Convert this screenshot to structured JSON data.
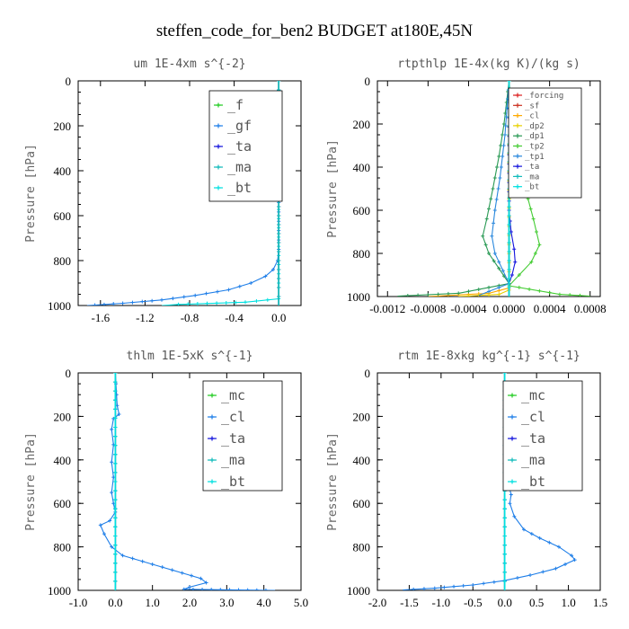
{
  "title": "steffen_code_for_ben2  BUDGET at180E,45N",
  "chart_data": [
    {
      "type": "line",
      "title": "um   1E-4xm s^{-2}",
      "ylabel": "Pressure [hPa]",
      "xlim": [
        -1.8,
        0.2
      ],
      "ylim": [
        1000,
        0
      ],
      "xticks": [
        -1.6,
        -1.2,
        -0.8,
        -0.4,
        0.0
      ],
      "xtick_labels": [
        "-1.6",
        "-1.2",
        "-0.8",
        "-0.4",
        "0.0"
      ],
      "yticks": [
        0,
        200,
        400,
        600,
        800,
        1000
      ],
      "legend": "top-right",
      "series": [
        {
          "name": "_f",
          "color": "#22cc22",
          "x": [
            0,
            0
          ],
          "y": [
            0,
            1000
          ]
        },
        {
          "name": "_gf",
          "color": "#1e7ee8",
          "x": [
            0,
            0,
            -0.01,
            -0.05,
            -0.12,
            -0.25,
            -0.45,
            -0.75,
            -1.05,
            -1.4,
            -1.65,
            -1.72
          ],
          "y": [
            0,
            750,
            800,
            840,
            870,
            900,
            930,
            955,
            975,
            990,
            998,
            1000
          ]
        },
        {
          "name": "_ta",
          "color": "#1414dd",
          "x": [
            0,
            0
          ],
          "y": [
            0,
            1000
          ]
        },
        {
          "name": "_ma",
          "color": "#11bbbb",
          "x": [
            0,
            0
          ],
          "y": [
            0,
            1000
          ]
        },
        {
          "name": "_bt",
          "color": "#00e0e0",
          "x": [
            0,
            0,
            0,
            -0.3,
            -0.9,
            -1.05
          ],
          "y": [
            0,
            900,
            970,
            985,
            995,
            1000
          ]
        }
      ]
    },
    {
      "type": "line",
      "title": "rtpthlp   1E-4x(kg K)/(kg s)",
      "ylabel": "Pressure [hPa]",
      "xlim": [
        -0.0013,
        0.0009
      ],
      "ylim": [
        1000,
        0
      ],
      "xticks": [
        -0.0012,
        -0.0008,
        -0.0004,
        0.0,
        0.0004,
        0.0008
      ],
      "xtick_labels": [
        "-0.0012",
        "-0.0008",
        "-0.0004",
        "0.0000",
        "0.0004",
        "0.0008"
      ],
      "yticks": [
        0,
        200,
        400,
        600,
        800,
        1000
      ],
      "legend": "top-right",
      "series": [
        {
          "name": "_forcing",
          "color": "#dd2222",
          "x": [
            0,
            0
          ],
          "y": [
            0,
            1000
          ]
        },
        {
          "name": "_sf",
          "color": "#cc3322",
          "x": [
            0,
            0
          ],
          "y": [
            0,
            1000
          ]
        },
        {
          "name": "_cl",
          "color": "#ffaa00",
          "x": [
            0,
            0,
            -0.0002,
            -0.0008
          ],
          "y": [
            0,
            960,
            985,
            1000
          ]
        },
        {
          "name": "_dp2",
          "color": "#e8d000",
          "x": [
            0,
            0,
            -0.0001,
            -0.0005
          ],
          "y": [
            0,
            970,
            990,
            1000
          ]
        },
        {
          "name": "_dp1",
          "color": "#2a9a55",
          "x": [
            0,
            -5e-05,
            -0.0001,
            -0.00016,
            -0.00022,
            -0.00026,
            -0.0002,
            -0.0001,
            0,
            -0.0005,
            -0.0011
          ],
          "y": [
            0,
            200,
            350,
            500,
            640,
            720,
            800,
            870,
            940,
            985,
            998
          ]
        },
        {
          "name": "_tp2",
          "color": "#44cc33",
          "x": [
            0,
            4e-05,
            0.0001,
            0.00016,
            0.00024,
            0.0003,
            0.00022,
            0.0001,
            0,
            0.0005,
            0.0008
          ],
          "y": [
            0,
            200,
            350,
            500,
            640,
            760,
            840,
            900,
            950,
            990,
            998
          ]
        },
        {
          "name": "_tp1",
          "color": "#2a88dd",
          "x": [
            0,
            -4e-05,
            -9e-05,
            -0.00014,
            -0.00017,
            -0.00014,
            -6e-05,
            0,
            -0.0003
          ],
          "y": [
            0,
            250,
            450,
            600,
            720,
            800,
            880,
            940,
            995
          ]
        },
        {
          "name": "_ta",
          "color": "#1414dd",
          "x": [
            0,
            0,
            2e-05,
            5e-05,
            6e-05,
            3e-05,
            0
          ],
          "y": [
            0,
            600,
            700,
            780,
            840,
            900,
            940
          ]
        },
        {
          "name": "_ma",
          "color": "#11bbbb",
          "x": [
            0,
            0
          ],
          "y": [
            0,
            1000
          ]
        },
        {
          "name": "_bt",
          "color": "#00e0e0",
          "x": [
            0,
            0
          ],
          "y": [
            0,
            1000
          ]
        }
      ]
    },
    {
      "type": "line",
      "title": "thlm   1E-5xK s^{-1}",
      "ylabel": "Pressure [hPa]",
      "xlim": [
        -1.0,
        5.0
      ],
      "ylim": [
        1000,
        0
      ],
      "xticks": [
        -1,
        0,
        1,
        2,
        3,
        4,
        5
      ],
      "xtick_labels": [
        "-1.0",
        "0.0",
        "1.0",
        "2.0",
        "3.0",
        "4.0",
        "5.0"
      ],
      "yticks": [
        0,
        200,
        400,
        600,
        800,
        1000
      ],
      "legend": "top-right",
      "series": [
        {
          "name": "_mc",
          "color": "#22cc22",
          "x": [
            0,
            0
          ],
          "y": [
            0,
            1000
          ]
        },
        {
          "name": "_cl",
          "color": "#1e7ee8",
          "x": [
            0,
            0.05,
            0.1,
            -0.05,
            -0.1,
            -0.05,
            -0.1,
            -0.05,
            -0.1,
            -0.05,
            0,
            -0.15,
            -0.4,
            -0.3,
            -0.1,
            0.2,
            1.0,
            1.8,
            2.3,
            2.45,
            2.0,
            1.85,
            4.3
          ],
          "y": [
            0,
            150,
            190,
            210,
            260,
            330,
            410,
            480,
            550,
            600,
            640,
            680,
            700,
            740,
            800,
            840,
            880,
            920,
            945,
            965,
            985,
            995,
            1000
          ]
        },
        {
          "name": "_ta",
          "color": "#1414dd",
          "x": [
            0,
            0
          ],
          "y": [
            0,
            1000
          ]
        },
        {
          "name": "_ma",
          "color": "#11bbbb",
          "x": [
            0,
            0
          ],
          "y": [
            0,
            1000
          ]
        },
        {
          "name": "_bt",
          "color": "#00e0e0",
          "x": [
            0,
            0
          ],
          "y": [
            0,
            1000
          ]
        }
      ]
    },
    {
      "type": "line",
      "title": "rtm   1E-8xkg kg^{-1} s^{-1}",
      "ylabel": "Pressure [hPa]",
      "xlim": [
        -2.0,
        1.5
      ],
      "ylim": [
        1000,
        0
      ],
      "xticks": [
        -2.0,
        -1.5,
        -1.0,
        -0.5,
        0.0,
        0.5,
        1.0,
        1.5
      ],
      "xtick_labels": [
        "-2.0",
        "-1.5",
        "-1.0",
        "-0.5",
        "0.0",
        "0.5",
        "1.0",
        "1.5"
      ],
      "yticks": [
        0,
        200,
        400,
        600,
        800,
        1000
      ],
      "legend": "top-right",
      "series": [
        {
          "name": "_mc",
          "color": "#22cc22",
          "x": [
            0,
            0
          ],
          "y": [
            0,
            1000
          ]
        },
        {
          "name": "_cl",
          "color": "#1e7ee8",
          "x": [
            0,
            0,
            0.02,
            0.06,
            0.05,
            0.1,
            0.08,
            0.15,
            0.3,
            0.55,
            0.85,
            1.05,
            1.1,
            0.8,
            0.4,
            0,
            -0.5,
            -1.1,
            -1.6
          ],
          "y": [
            0,
            200,
            300,
            400,
            500,
            560,
            600,
            660,
            720,
            760,
            800,
            840,
            860,
            900,
            930,
            955,
            975,
            990,
            998
          ]
        },
        {
          "name": "_ta",
          "color": "#1414dd",
          "x": [
            0,
            0
          ],
          "y": [
            0,
            1000
          ]
        },
        {
          "name": "_ma",
          "color": "#11bbbb",
          "x": [
            0,
            0
          ],
          "y": [
            0,
            1000
          ]
        },
        {
          "name": "_bt",
          "color": "#00e0e0",
          "x": [
            0,
            0
          ],
          "y": [
            0,
            1000
          ]
        }
      ]
    }
  ]
}
